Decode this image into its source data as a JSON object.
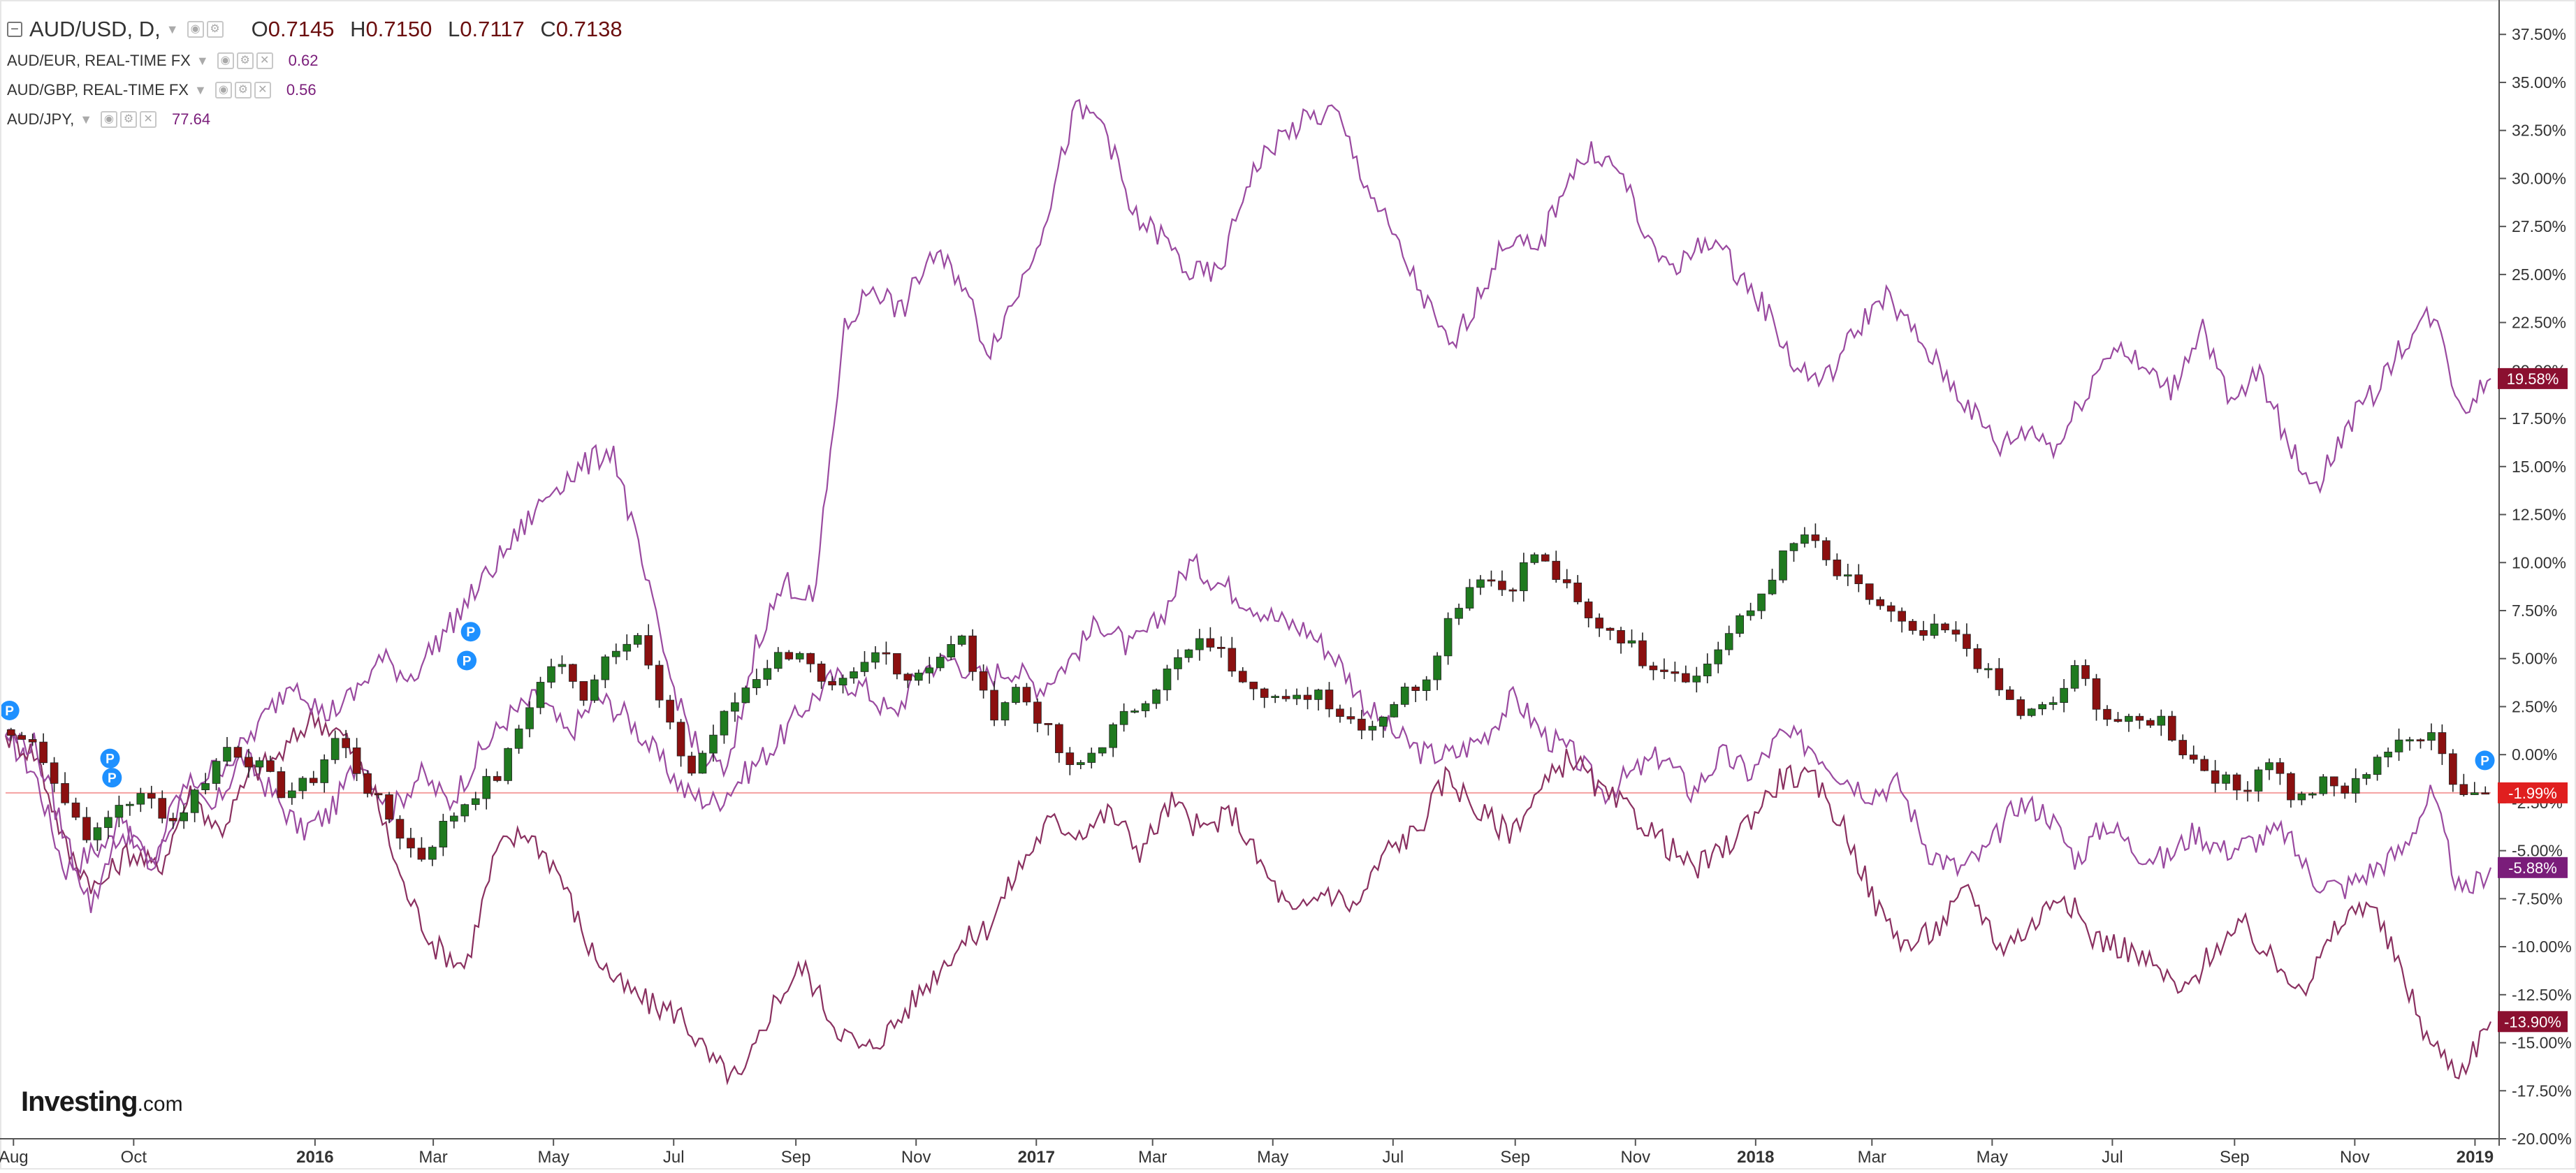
{
  "legend": {
    "main": {
      "symbol": "AUD/USD, D,",
      "open_key": "O",
      "open": "0.7145",
      "high_key": "H",
      "high": "0.7150",
      "low_key": "L",
      "low": "0.7117",
      "close_key": "C",
      "close": "0.7138"
    },
    "comparisons": [
      {
        "label": "AUD/EUR, REAL-TIME FX",
        "value": "0.62"
      },
      {
        "label": "AUD/GBP, REAL-TIME FX",
        "value": "0.56"
      },
      {
        "label": "AUD/JPY,",
        "value": "77.64"
      }
    ]
  },
  "brand": {
    "name": "Investing",
    "suffix": ".com"
  },
  "colors": {
    "up": "#1f7a1f",
    "down": "#8b1010",
    "wick": "#222222",
    "compare": "#9a4aa0",
    "compare_dark": "#8a3060",
    "label_red": "#e01f1f",
    "label_purple": "#7a1d7a",
    "label_maroon": "#8b1030",
    "axis": "#555555",
    "grid_ref": "#f4a0a0",
    "marker": "#1e90ff"
  },
  "chart_data": {
    "type": "line",
    "title": "",
    "xlabel": "",
    "ylabel": "",
    "ylim": [
      -20,
      39
    ],
    "y_ticks": [
      "37.50%",
      "35.00%",
      "32.50%",
      "30.00%",
      "27.50%",
      "25.00%",
      "22.50%",
      "20.00%",
      "17.50%",
      "15.00%",
      "12.50%",
      "10.00%",
      "7.50%",
      "5.00%",
      "2.50%",
      "0.00%",
      "-2.50%",
      "-5.00%",
      "-7.50%",
      "-10.00%",
      "-12.50%",
      "-15.00%",
      "-17.50%",
      "-20.00%"
    ],
    "y_tick_values": [
      37.5,
      35,
      32.5,
      30,
      27.5,
      25,
      22.5,
      20,
      17.5,
      15,
      12.5,
      10,
      7.5,
      5,
      2.5,
      0,
      -2.5,
      -5,
      -7.5,
      -10,
      -12.5,
      -15,
      -17.5,
      -20
    ],
    "x_range": [
      "2015-07-28",
      "2019-01-09"
    ],
    "x_ticks": [
      {
        "label": "Aug",
        "date": "2015-08-01",
        "bold": false
      },
      {
        "label": "Oct",
        "date": "2015-10-01",
        "bold": false
      },
      {
        "label": "2016",
        "date": "2016-01-01",
        "bold": true
      },
      {
        "label": "Mar",
        "date": "2016-03-01",
        "bold": false
      },
      {
        "label": "May",
        "date": "2016-05-01",
        "bold": false
      },
      {
        "label": "Jul",
        "date": "2016-07-01",
        "bold": false
      },
      {
        "label": "Sep",
        "date": "2016-09-01",
        "bold": false
      },
      {
        "label": "Nov",
        "date": "2016-11-01",
        "bold": false
      },
      {
        "label": "2017",
        "date": "2017-01-01",
        "bold": true
      },
      {
        "label": "Mar",
        "date": "2017-03-01",
        "bold": false
      },
      {
        "label": "May",
        "date": "2017-05-01",
        "bold": false
      },
      {
        "label": "Jul",
        "date": "2017-07-01",
        "bold": false
      },
      {
        "label": "Sep",
        "date": "2017-09-01",
        "bold": false
      },
      {
        "label": "Nov",
        "date": "2017-11-01",
        "bold": false
      },
      {
        "label": "2018",
        "date": "2018-01-01",
        "bold": true
      },
      {
        "label": "Mar",
        "date": "2018-03-01",
        "bold": false
      },
      {
        "label": "May",
        "date": "2018-05-01",
        "bold": false
      },
      {
        "label": "Jul",
        "date": "2018-07-01",
        "bold": false
      },
      {
        "label": "Sep",
        "date": "2018-09-01",
        "bold": false
      },
      {
        "label": "Nov",
        "date": "2018-11-01",
        "bold": false
      },
      {
        "label": "2019",
        "date": "2019-01-01",
        "bold": true
      }
    ],
    "grid": false,
    "reference_line": -1.99,
    "series": [
      {
        "name": "AUD/USD, D,",
        "style": "candles",
        "y": [
          1,
          0.5,
          -2.5,
          -4.5,
          -2.5,
          -2.2,
          -3.5,
          -1.5,
          0.5,
          -0.5,
          -2.0,
          -1.5,
          1.0,
          -1.5,
          -3.5,
          -5.5,
          -3.5,
          -2.0,
          -1.0,
          2.5,
          5.0,
          3.0,
          5.5,
          6.5,
          2.0,
          -1.0,
          1.5,
          3.5,
          5.0,
          5.5,
          3.0,
          4.0,
          5.5,
          4.0,
          5.0,
          6.0,
          2.0,
          3.5,
          1.5,
          -1.0,
          0.5,
          2.0,
          3.5,
          5.0,
          6.0,
          4.5,
          3.5,
          2.5,
          3.5,
          2.0,
          1.5,
          3.0,
          4.0,
          7.5,
          9.5,
          8.5,
          10.5,
          9.0,
          7.0,
          6.5,
          5.0,
          4.5,
          4.0,
          6.0,
          7.5,
          10.0,
          11.5,
          9.5,
          8.5,
          7.5,
          6.0,
          6.5,
          5.5,
          3.5,
          2.0,
          2.5,
          4.5,
          2.0,
          1.5,
          2.0,
          0.0,
          -1.0,
          -2.0,
          0.0,
          -2.5,
          -1.5,
          -2.0,
          0.0,
          0.5,
          1.5,
          -2.0,
          -1.99
        ],
        "y_unit": "percent change"
      },
      {
        "name": "AUD/EUR, REAL-TIME FX",
        "style": "line",
        "y": [
          1.0,
          -1.0,
          -6.0,
          -5.0,
          -4.0,
          -6.0,
          -2.0,
          -3.0,
          0.0,
          -2.0,
          -4.0,
          -3.0,
          0.0,
          -3.0,
          -1.0,
          -2.5,
          0.0,
          2.0,
          3.0,
          1.0,
          3.0,
          2.0,
          0.0,
          -2.0,
          -2.5,
          -1.0,
          0.5,
          2.5,
          4.0,
          3.5,
          2.0,
          4.5,
          5.0,
          4.0,
          4.5,
          3.5,
          5.0,
          7.0,
          5.5,
          7.0,
          10.0,
          9.0,
          8.0,
          7.0,
          6.5,
          5.0,
          2.5,
          1.0,
          0.0,
          0.0,
          1.0,
          3.0,
          1.0,
          0.0,
          -2.0,
          -1.0,
          0.0,
          -2.0,
          0.0,
          -1.0,
          1.0,
          0.5,
          -1.0,
          -2.0,
          -1.5,
          -5.0,
          -6.0,
          -5.0,
          -2.5,
          -3.0,
          -5.5,
          -3.5,
          -5.0,
          -5.5,
          -4.0,
          -5.0,
          -4.5,
          -4.0,
          -6.5,
          -7.0,
          -6.0,
          -5.0,
          -2.0,
          -7.5,
          -5.88
        ]
      },
      {
        "name": "AUD/GBP, REAL-TIME FX",
        "style": "line",
        "y": [
          1.0,
          0.0,
          -5.0,
          -7.0,
          -5.0,
          -6.0,
          -2.0,
          -4.0,
          -1.0,
          0.0,
          2.0,
          1.0,
          -2.0,
          -7.0,
          -10.0,
          -11.0,
          -5.0,
          -4.0,
          -6.0,
          -10.0,
          -12.0,
          -13.0,
          -13.5,
          -16.0,
          -17.0,
          -13.0,
          -11.0,
          -14.0,
          -15.5,
          -14.0,
          -12.0,
          -10.0,
          -9.0,
          -6.0,
          -3.5,
          -4.0,
          -3.0,
          -5.0,
          -2.5,
          -4.0,
          -3.0,
          -6.0,
          -8.5,
          -7.0,
          -8.0,
          -5.0,
          -4.0,
          -1.0,
          -3.0,
          -4.0,
          -2.0,
          0.0,
          -2.0,
          -3.0,
          -4.5,
          -6.0,
          -5.0,
          -3.0,
          -1.0,
          -1.5,
          -4.0,
          -8.0,
          -10.0,
          -9.0,
          -7.0,
          -10.0,
          -9.0,
          -7.0,
          -9.5,
          -10.0,
          -11.0,
          -12.5,
          -10.0,
          -9.0,
          -11.0,
          -12.0,
          -9.0,
          -7.5,
          -11.0,
          -15.0,
          -16.5,
          -13.9
        ]
      },
      {
        "name": "AUD/JPY,",
        "style": "line",
        "y": [
          1.0,
          0.5,
          -4.0,
          -8.0,
          -3.0,
          -6.0,
          -2.0,
          -1.0,
          0.0,
          2.0,
          4.0,
          2.0,
          3.0,
          5.0,
          4.0,
          6.0,
          8.0,
          10.0,
          12.0,
          14.0,
          15.0,
          16.0,
          10.0,
          4.0,
          0.0,
          -1.0,
          6.0,
          9.0,
          8.0,
          22.0,
          24.5,
          23.0,
          26.0,
          25.0,
          21.0,
          24.0,
          28.0,
          33.5,
          33.0,
          28.0,
          27.0,
          25.0,
          25.0,
          30.0,
          32.0,
          33.0,
          33.5,
          30.0,
          27.0,
          24.0,
          21.0,
          24.0,
          27.0,
          26.0,
          30.0,
          31.5,
          30.0,
          26.0,
          25.5,
          27.0,
          25.0,
          23.0,
          20.0,
          19.5,
          22.0,
          24.0,
          22.0,
          20.0,
          18.0,
          16.0,
          17.0,
          16.0,
          19.0,
          21.5,
          20.0,
          19.0,
          22.5,
          18.0,
          20.0,
          16.0,
          14.0,
          17.0,
          19.0,
          21.5,
          23.0,
          18.0,
          19.58
        ]
      }
    ],
    "last_values": {
      "AUD/USD, D,": "-1.99%",
      "AUD/EUR, REAL-TIME FX": "-5.88%",
      "AUD/GBP, REAL-TIME FX": "-13.90%",
      "AUD/JPY,": "19.58%"
    },
    "markers": [
      {
        "label": "P",
        "date": "2015-07-30",
        "y": 2.3
      },
      {
        "label": "P",
        "date": "2015-09-19",
        "y": -0.2
      },
      {
        "label": "P",
        "date": "2015-09-20",
        "y": -1.2
      },
      {
        "label": "P",
        "date": "2016-03-20",
        "y": 6.4
      },
      {
        "label": "P",
        "date": "2016-03-18",
        "y": 4.9
      },
      {
        "label": "P",
        "date": "2019-01-06",
        "y": -0.3
      }
    ]
  }
}
